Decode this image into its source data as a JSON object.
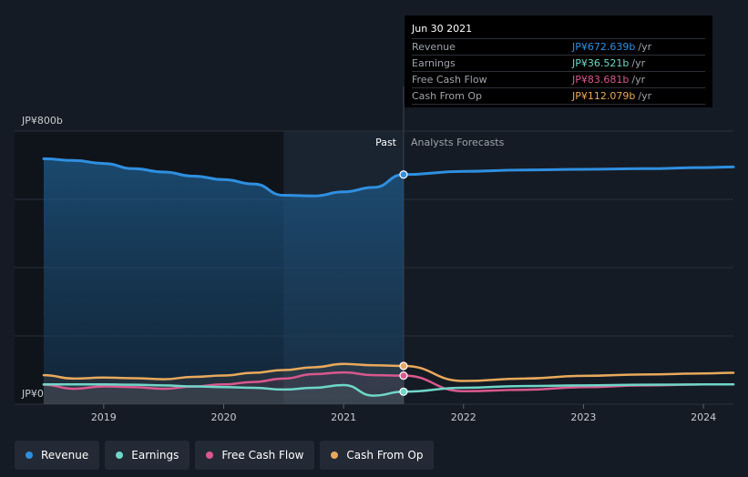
{
  "tooltip": {
    "date": "Jun 30 2021",
    "rows": [
      {
        "label": "Revenue",
        "value": "JP¥672.639b",
        "unit": "/yr",
        "color": "#2f8fe0"
      },
      {
        "label": "Earnings",
        "value": "JP¥36.521b",
        "unit": "/yr",
        "color": "#6fd6c8"
      },
      {
        "label": "Free Cash Flow",
        "value": "JP¥83.681b",
        "unit": "/yr",
        "color": "#d9588e"
      },
      {
        "label": "Cash From Op",
        "value": "JP¥112.079b",
        "unit": "/yr",
        "color": "#e8a95c"
      }
    ]
  },
  "legend": [
    {
      "label": "Revenue",
      "color": "#2f8fe0"
    },
    {
      "label": "Earnings",
      "color": "#6fd6c8"
    },
    {
      "label": "Free Cash Flow",
      "color": "#d9588e"
    },
    {
      "label": "Cash From Op",
      "color": "#e8a95c"
    }
  ],
  "chart_data": {
    "type": "area",
    "y_top_label": "JP¥800b",
    "y_zero_label": "JP¥0",
    "past_label": "Past",
    "forecast_label": "Analysts Forecasts",
    "ylim": [
      0,
      800
    ],
    "xlim": [
      2018.5,
      2024.25
    ],
    "divider_x": 2021.5,
    "highlight_start_x": 2020.5,
    "x_ticks": [
      "2019",
      "2020",
      "2021",
      "2022",
      "2023",
      "2024"
    ],
    "x_tick_values": [
      2019,
      2020,
      2021,
      2022,
      2023,
      2024
    ],
    "grid": true,
    "series": [
      {
        "name": "Revenue",
        "color": "#2f8fe0",
        "x": [
          2018.5,
          2018.75,
          2019.0,
          2019.25,
          2019.5,
          2019.75,
          2020.0,
          2020.25,
          2020.5,
          2020.75,
          2021.0,
          2021.25,
          2021.5,
          2022.0,
          2022.5,
          2023.0,
          2023.5,
          2024.0,
          2024.25
        ],
        "values": [
          719,
          714,
          705,
          690,
          680,
          668,
          658,
          645,
          612,
          610,
          622,
          635,
          672.639,
          682,
          686,
          688,
          690,
          693,
          695
        ]
      },
      {
        "name": "Earnings",
        "color": "#6fd6c8",
        "x": [
          2018.5,
          2018.75,
          2019.0,
          2019.25,
          2019.5,
          2019.75,
          2020.0,
          2020.25,
          2020.5,
          2020.75,
          2021.0,
          2021.25,
          2021.5,
          2022.0,
          2022.5,
          2023.0,
          2023.5,
          2024.0,
          2024.25
        ],
        "values": [
          58,
          58,
          58,
          57,
          55,
          52,
          50,
          48,
          43,
          48,
          56,
          25,
          36.521,
          48,
          53,
          55,
          57,
          58,
          58
        ]
      },
      {
        "name": "Free Cash Flow",
        "color": "#d9588e",
        "x": [
          2018.5,
          2018.75,
          2019.0,
          2019.25,
          2019.5,
          2019.75,
          2020.0,
          2020.25,
          2020.5,
          2020.75,
          2021.0,
          2021.25,
          2021.5,
          2022.0,
          2022.5,
          2023.0,
          2023.5,
          2024.0,
          2024.25
        ],
        "values": [
          57,
          45,
          52,
          50,
          45,
          52,
          58,
          65,
          75,
          88,
          93,
          85,
          83.681,
          38,
          42,
          50,
          55,
          58,
          58
        ]
      },
      {
        "name": "Cash From Op",
        "color": "#e8a95c",
        "x": [
          2018.5,
          2018.75,
          2019.0,
          2019.25,
          2019.5,
          2019.75,
          2020.0,
          2020.25,
          2020.5,
          2020.75,
          2021.0,
          2021.25,
          2021.5,
          2022.0,
          2022.5,
          2023.0,
          2023.5,
          2024.0,
          2024.25
        ],
        "values": [
          85,
          75,
          78,
          76,
          73,
          80,
          84,
          92,
          100,
          108,
          118,
          114,
          112.079,
          68,
          75,
          83,
          87,
          90,
          92
        ]
      }
    ]
  }
}
